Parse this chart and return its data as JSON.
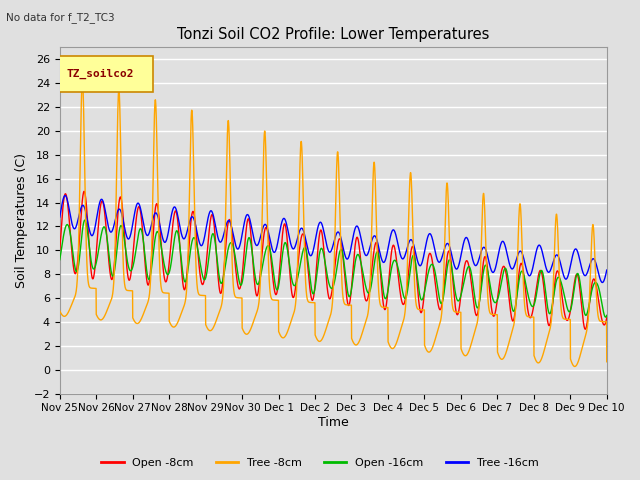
{
  "title": "Tonzi Soil CO2 Profile: Lower Temperatures",
  "subtitle": "No data for f_T2_TC3",
  "ylabel": "Soil Temperatures (C)",
  "xlabel": "Time",
  "legend_label": "TZ_soilco2",
  "series_labels": [
    "Open -8cm",
    "Tree -8cm",
    "Open -16cm",
    "Tree -16cm"
  ],
  "series_colors": [
    "#ff0000",
    "#ffa500",
    "#00bb00",
    "#0000ff"
  ],
  "ylim": [
    -2,
    27
  ],
  "yticks": [
    -2,
    0,
    2,
    4,
    6,
    8,
    10,
    12,
    14,
    16,
    18,
    20,
    22,
    24,
    26
  ],
  "xtick_labels": [
    "Nov 25",
    "Nov 26",
    "Nov 27",
    "Nov 28",
    "Nov 29",
    "Nov 30",
    "Dec 1",
    "Dec 2",
    "Dec 3",
    "Dec 4",
    "Dec 5",
    "Dec 6",
    "Dec 7",
    "Dec 8",
    "Dec 9",
    "Dec 10"
  ],
  "bg_color": "#e0e0e0",
  "plot_bg_color": "#e0e0e0",
  "grid_color": "#ffffff",
  "legend_box_color": "#ffff99",
  "legend_box_edge": "#cc8800"
}
